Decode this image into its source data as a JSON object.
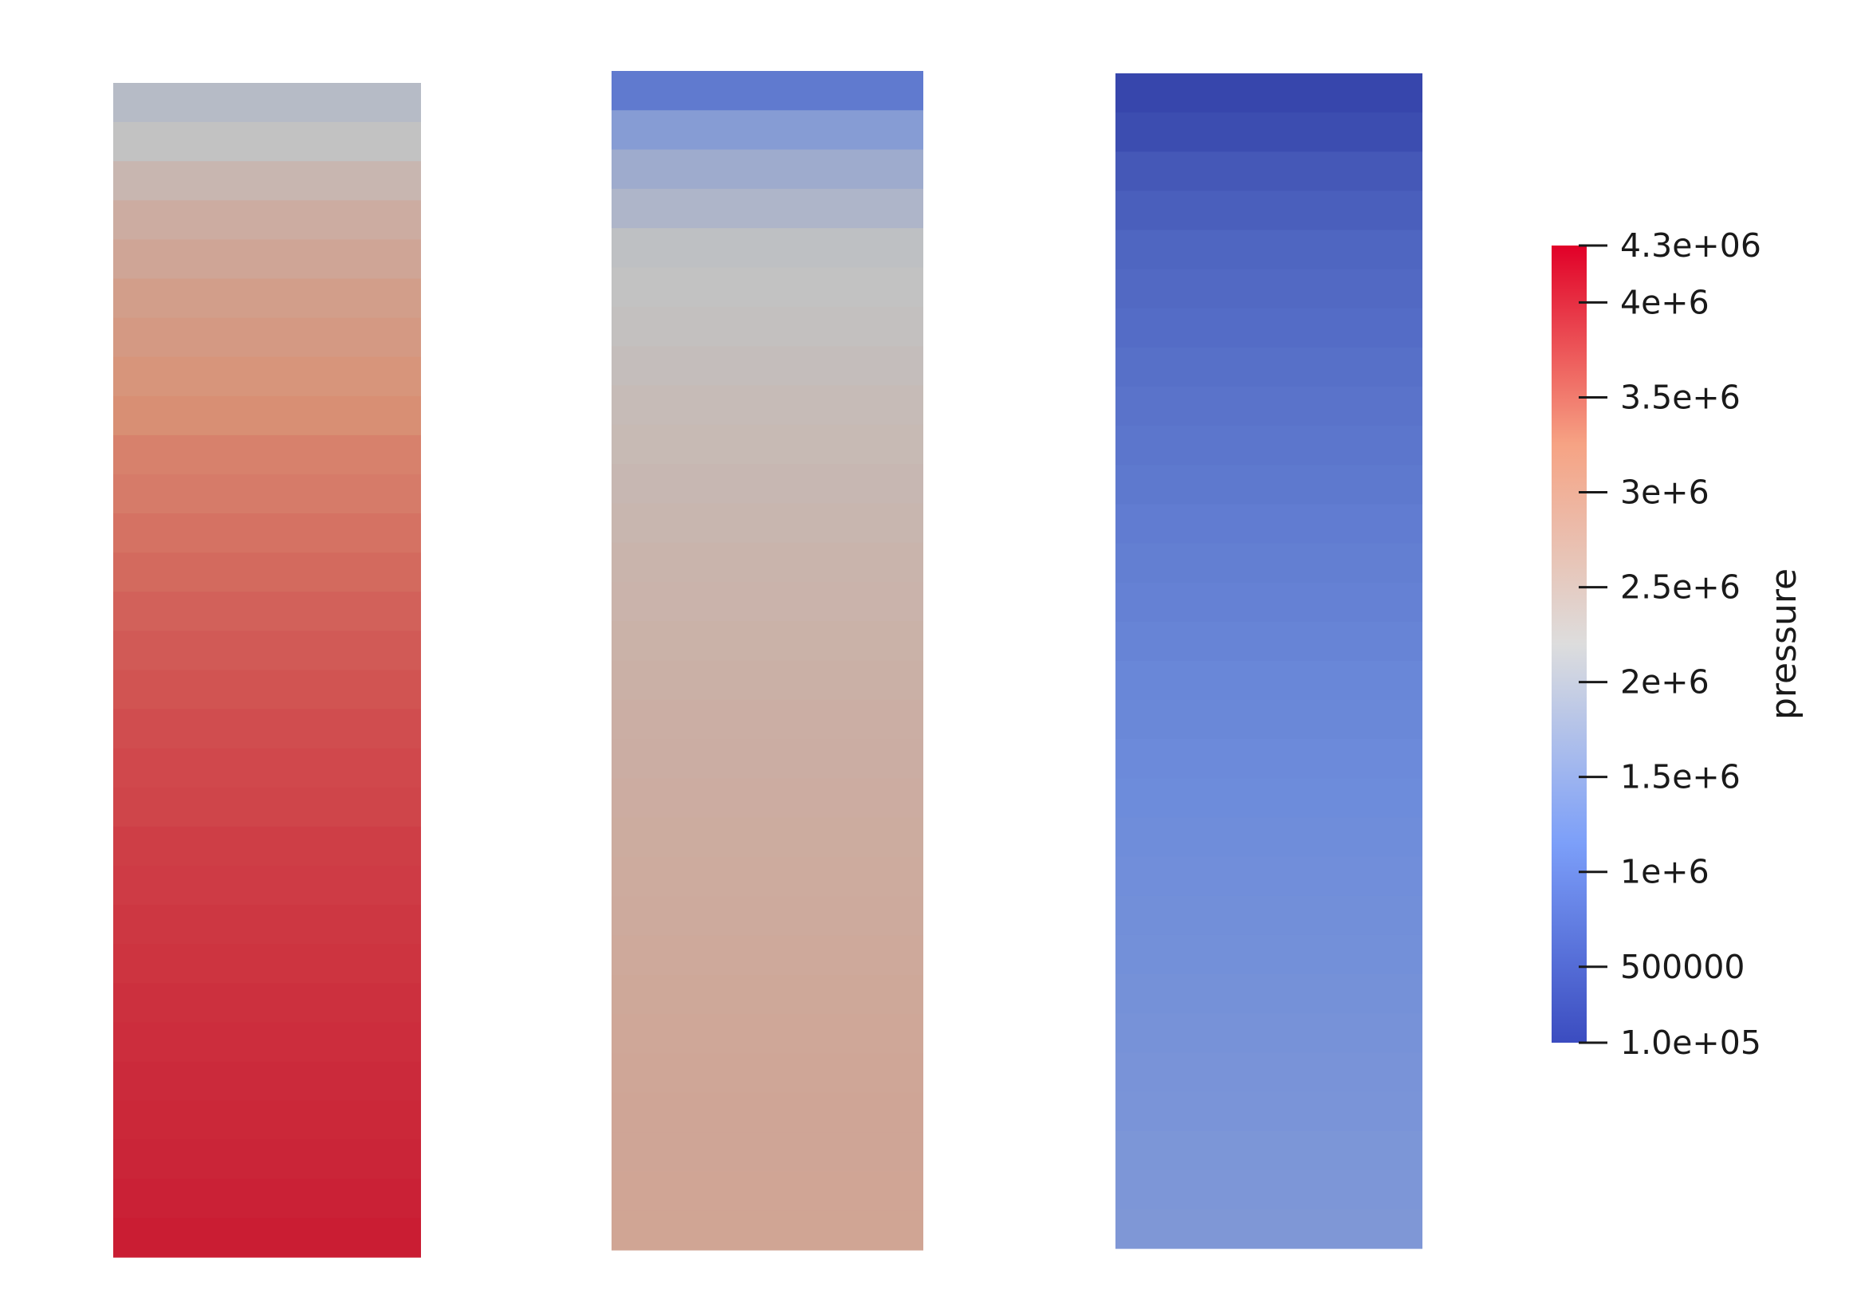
{
  "chart_data": {
    "type": "heatmap",
    "colormap": "coolwarm",
    "colorbar": {
      "title": "pressure",
      "range": [
        100000,
        4300000
      ],
      "ticks": [
        {
          "value": 4300000,
          "label": "4.3e+06"
        },
        {
          "value": 4000000,
          "label": "4e+6"
        },
        {
          "value": 3500000,
          "label": "3.5e+6"
        },
        {
          "value": 3000000,
          "label": "3e+6"
        },
        {
          "value": 2500000,
          "label": "2.5e+6"
        },
        {
          "value": 2000000,
          "label": "2e+6"
        },
        {
          "value": 1500000,
          "label": "1.5e+6"
        },
        {
          "value": 1000000,
          "label": "1e+6"
        },
        {
          "value": 500000,
          "label": "500000"
        },
        {
          "value": 100000,
          "label": "1.0e+05"
        }
      ],
      "placement": "right"
    },
    "columns": [
      {
        "cells_top_to_bottom": [
          2050000,
          2200000,
          2450000,
          2650000,
          2800000,
          2950000,
          3050000,
          3150000,
          3250000,
          3350000,
          3400000,
          3470000,
          3530000,
          3590000,
          3640000,
          3690000,
          3730000,
          3770000,
          3800000,
          3840000,
          3870000,
          3900000,
          3920000,
          3950000,
          3970000,
          3990000,
          4010000,
          4030000,
          4060000,
          4090000
        ]
      },
      {
        "cells_top_to_bottom": [
          900000,
          1450000,
          1750000,
          1950000,
          2150000,
          2200000,
          2250000,
          2300000,
          2350000,
          2390000,
          2430000,
          2460000,
          2490000,
          2520000,
          2550000,
          2580000,
          2610000,
          2630000,
          2650000,
          2670000,
          2690000,
          2710000,
          2730000,
          2750000,
          2770000,
          2780000,
          2790000,
          2800000,
          2810000,
          2820000
        ]
      },
      {
        "cells_top_to_bottom": [
          150000,
          250000,
          400000,
          500000,
          600000,
          650000,
          700000,
          750000,
          800000,
          840000,
          880000,
          920000,
          960000,
          1000000,
          1040000,
          1070000,
          1100000,
          1130000,
          1150000,
          1170000,
          1190000,
          1210000,
          1230000,
          1250000,
          1270000,
          1290000,
          1310000,
          1330000,
          1350000,
          1370000
        ]
      }
    ]
  }
}
